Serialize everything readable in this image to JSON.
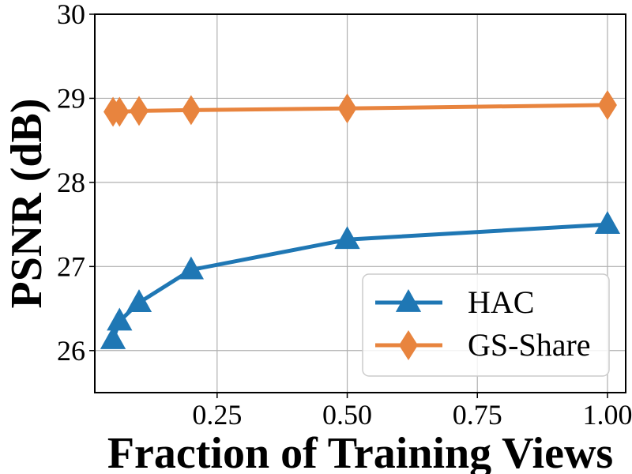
{
  "chart_data": {
    "type": "line",
    "title": "",
    "xlabel": "Fraction of Training Views",
    "ylabel": "PSNR (dB)",
    "xlim": [
      0.015,
      1.035
    ],
    "ylim": [
      25.5,
      30.0
    ],
    "xticks": [
      0.25,
      0.5,
      0.75,
      1.0
    ],
    "xtick_labels": [
      "0.25",
      "0.50",
      "0.75",
      "1.00"
    ],
    "yticks": [
      26,
      27,
      28,
      29,
      30
    ],
    "ytick_labels": [
      "26",
      "27",
      "28",
      "29",
      "30"
    ],
    "grid": true,
    "legend_position": "lower-right",
    "series": [
      {
        "name": "HAC",
        "color": "#1f77b4",
        "marker": "triangle",
        "x": [
          0.05,
          0.0625,
          0.1,
          0.2,
          0.5,
          1.0
        ],
        "y": [
          26.13,
          26.35,
          26.57,
          26.96,
          27.32,
          27.5
        ]
      },
      {
        "name": "GS-Share",
        "color": "#e8843e",
        "marker": "diamond",
        "x": [
          0.05,
          0.0625,
          0.1,
          0.2,
          0.5,
          1.0
        ],
        "y": [
          28.84,
          28.84,
          28.85,
          28.86,
          28.88,
          28.92
        ]
      }
    ]
  }
}
